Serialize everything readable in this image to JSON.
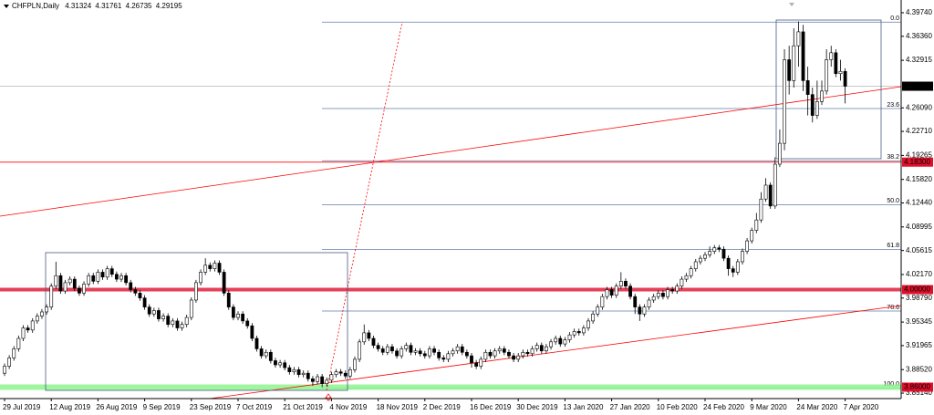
{
  "chart_data": {
    "type": "candlestick",
    "title": "CHFPLN,Daily",
    "ylim": [
      3.8436,
      4.4157
    ],
    "yticks": [
      {
        "value": 4.3974,
        "label": "4.39740"
      },
      {
        "value": 4.3636,
        "label": "4.36360"
      },
      4.32915,
      {
        "value": 4.2609,
        "label": "4.26090"
      },
      {
        "value": 4.2271,
        "label": "4.22710"
      },
      4.19265,
      {
        "value": 4.1582,
        "label": "4.15820"
      },
      {
        "value": 4.1244,
        "label": "4.12440"
      },
      4.08995,
      4.05615,
      {
        "value": 4.0217,
        "label": "4.02170"
      },
      {
        "value": 3.9879,
        "label": "3.98790"
      },
      3.95345,
      3.91965,
      {
        "value": 3.8852,
        "label": "3.88520"
      },
      {
        "value": 3.8514,
        "label": "3.85140"
      }
    ],
    "up_color": "#ffffff",
    "down_color": "#000000",
    "line_color": "#000000",
    "categories": [
      "29 Jul 2019",
      null,
      null,
      null,
      null,
      null,
      null,
      null,
      null,
      null,
      "12 Aug 2019",
      null,
      null,
      null,
      null,
      null,
      null,
      null,
      null,
      null,
      "26 Aug 2019",
      null,
      null,
      null,
      null,
      null,
      null,
      null,
      null,
      null,
      "9 Sep 2019",
      null,
      null,
      null,
      null,
      null,
      null,
      null,
      null,
      null,
      "23 Sep 2019",
      null,
      null,
      null,
      null,
      null,
      null,
      null,
      null,
      null,
      "7 Oct 2019",
      null,
      null,
      null,
      null,
      null,
      null,
      null,
      null,
      null,
      "21 Oct 2019",
      null,
      null,
      null,
      null,
      null,
      null,
      null,
      null,
      null,
      "4 Nov 2019",
      null,
      null,
      null,
      null,
      null,
      null,
      null,
      null,
      null,
      "18 Nov 2019",
      null,
      null,
      null,
      null,
      null,
      null,
      null,
      null,
      null,
      "2 Dec 2019",
      null,
      null,
      null,
      null,
      null,
      null,
      null,
      null,
      null,
      "16 Dec 2019",
      null,
      null,
      null,
      null,
      null,
      null,
      null,
      null,
      null,
      "30 Dec 2019",
      null,
      null,
      null,
      null,
      null,
      null,
      null,
      null,
      null,
      "13 Jan 2020",
      null,
      null,
      null,
      null,
      null,
      null,
      null,
      null,
      null,
      "27 Jan 2020",
      null,
      null,
      null,
      null,
      null,
      null,
      null,
      null,
      null,
      "10 Feb 2020",
      null,
      null,
      null,
      null,
      null,
      null,
      null,
      null,
      null,
      "24 Feb 2020",
      null,
      null,
      null,
      null,
      null,
      null,
      null,
      null,
      null,
      "9 Mar 2020",
      null,
      null,
      null,
      null,
      null,
      null,
      null,
      null,
      null,
      "24 Mar 2020",
      null,
      null,
      null,
      null,
      null,
      null,
      null,
      null,
      null,
      "7 Apr 2020"
    ],
    "open": [
      3.88,
      3.89,
      3.902,
      3.915,
      3.93,
      3.945,
      3.942,
      3.955,
      3.962,
      3.968,
      3.975,
      4.005,
      4.02,
      3.998,
      4.01,
      4.015,
      4.002,
      3.995,
      4.008,
      4.02,
      4.012,
      4.025,
      4.018,
      4.03,
      4.022,
      4.015,
      4.02,
      4.01,
      4.0,
      3.995,
      3.988,
      3.975,
      3.965,
      3.97,
      3.958,
      3.962,
      3.95,
      3.955,
      3.945,
      3.95,
      3.96,
      3.985,
      4.01,
      4.025,
      4.035,
      4.03,
      4.038,
      4.025,
      3.995,
      3.975,
      3.96,
      3.965,
      3.955,
      3.948,
      3.93,
      3.915,
      3.905,
      3.91,
      3.898,
      3.892,
      3.895,
      3.888,
      3.882,
      3.885,
      3.878,
      3.88,
      3.872,
      3.868,
      3.875,
      3.865,
      3.87,
      3.878,
      3.882,
      3.88,
      3.876,
      3.885,
      3.9,
      3.925,
      3.938,
      3.93,
      3.92,
      3.915,
      3.91,
      3.918,
      3.912,
      3.905,
      3.915,
      3.92,
      3.91,
      3.912,
      3.908,
      3.905,
      3.915,
      3.91,
      3.902,
      3.9,
      3.908,
      3.912,
      3.918,
      3.91,
      3.905,
      3.895,
      3.89,
      3.9,
      3.91,
      3.905,
      3.912,
      3.915,
      3.91,
      3.905,
      3.9,
      3.905,
      3.91,
      3.908,
      3.915,
      3.92,
      3.912,
      3.918,
      3.925,
      3.93,
      3.922,
      3.928,
      3.935,
      3.94,
      3.938,
      3.945,
      3.955,
      3.965,
      3.975,
      3.99,
      4.0,
      3.992,
      4.005,
      4.012,
      4.005,
      3.99,
      3.975,
      3.965,
      3.975,
      3.985,
      3.99,
      3.995,
      3.99,
      4.0,
      3.998,
      4.005,
      4.015,
      4.02,
      4.03,
      4.04,
      4.045,
      4.05,
      4.055,
      4.06,
      4.058,
      4.045,
      4.03,
      4.025,
      4.04,
      4.055,
      4.07,
      4.085,
      4.1,
      4.13,
      4.15,
      4.12,
      4.18,
      4.21,
      4.33,
      4.3,
      4.35,
      4.37,
      4.3,
      4.28,
      4.25,
      4.27,
      4.285,
      4.33,
      4.34,
      4.31,
      4.31324
    ],
    "high": [
      3.894,
      3.906,
      3.919,
      3.934,
      3.949,
      3.949,
      3.959,
      3.966,
      3.972,
      3.979,
      4.009,
      4.04,
      4.024,
      4.014,
      4.019,
      4.019,
      4.006,
      4.012,
      4.024,
      4.024,
      4.029,
      4.029,
      4.034,
      4.034,
      4.026,
      4.024,
      4.024,
      4.014,
      4.004,
      3.999,
      3.992,
      3.979,
      3.974,
      3.974,
      3.966,
      3.966,
      3.959,
      3.959,
      3.954,
      3.964,
      3.989,
      4.014,
      4.029,
      4.045,
      4.039,
      4.042,
      4.042,
      4.029,
      3.999,
      3.979,
      3.969,
      3.969,
      3.959,
      3.952,
      3.934,
      3.919,
      3.914,
      3.914,
      3.902,
      3.899,
      3.899,
      3.892,
      3.889,
      3.889,
      3.884,
      3.884,
      3.876,
      3.879,
      3.879,
      3.874,
      3.882,
      3.886,
      3.886,
      3.884,
      3.889,
      3.904,
      3.929,
      3.95,
      3.942,
      3.934,
      3.924,
      3.919,
      3.922,
      3.922,
      3.916,
      3.919,
      3.924,
      3.924,
      3.916,
      3.916,
      3.912,
      3.919,
      3.919,
      3.914,
      3.906,
      3.912,
      3.916,
      3.922,
      3.922,
      3.914,
      3.909,
      3.899,
      3.904,
      3.914,
      3.914,
      3.916,
      3.919,
      3.919,
      3.914,
      3.909,
      3.909,
      3.914,
      3.914,
      3.919,
      3.924,
      3.924,
      3.922,
      3.929,
      3.934,
      3.934,
      3.932,
      3.939,
      3.944,
      3.944,
      3.949,
      3.959,
      3.969,
      3.979,
      3.994,
      4.004,
      4.004,
      4.009,
      4.025,
      4.016,
      4.009,
      3.994,
      3.979,
      3.979,
      3.989,
      3.994,
      3.999,
      3.999,
      4.004,
      4.004,
      4.009,
      4.019,
      4.024,
      4.034,
      4.044,
      4.049,
      4.054,
      4.062,
      4.064,
      4.064,
      4.062,
      4.049,
      4.034,
      4.044,
      4.059,
      4.074,
      4.089,
      4.11,
      4.14,
      4.16,
      4.154,
      4.19,
      4.23,
      4.345,
      4.35,
      4.375,
      4.385,
      4.38,
      4.32,
      4.29,
      4.3,
      4.3,
      4.345,
      4.35,
      4.345,
      4.33,
      4.31761
    ],
    "low": [
      3.876,
      3.886,
      3.898,
      3.911,
      3.926,
      3.938,
      3.938,
      3.951,
      3.958,
      3.964,
      3.971,
      4.001,
      3.994,
      3.994,
      4.006,
      3.998,
      3.991,
      3.991,
      4.004,
      4.008,
      4.008,
      4.014,
      4.014,
      4.018,
      4.011,
      4.011,
      4.006,
      3.996,
      3.991,
      3.984,
      3.971,
      3.961,
      3.961,
      3.954,
      3.954,
      3.946,
      3.946,
      3.941,
      3.941,
      3.946,
      3.956,
      3.981,
      4.006,
      4.021,
      4.026,
      4.026,
      4.021,
      3.991,
      3.971,
      3.956,
      3.956,
      3.951,
      3.944,
      3.926,
      3.911,
      3.901,
      3.901,
      3.894,
      3.888,
      3.888,
      3.884,
      3.878,
      3.878,
      3.874,
      3.874,
      3.868,
      3.862,
      3.864,
      3.86,
      3.861,
      3.866,
      3.874,
      3.876,
      3.872,
      3.872,
      3.881,
      3.896,
      3.921,
      3.926,
      3.916,
      3.911,
      3.906,
      3.906,
      3.908,
      3.901,
      3.901,
      3.911,
      3.906,
      3.906,
      3.904,
      3.901,
      3.901,
      3.906,
      3.898,
      3.896,
      3.896,
      3.904,
      3.908,
      3.906,
      3.901,
      3.888,
      3.886,
      3.886,
      3.896,
      3.901,
      3.901,
      3.908,
      3.906,
      3.901,
      3.896,
      3.896,
      3.901,
      3.904,
      3.904,
      3.911,
      3.908,
      3.908,
      3.914,
      3.921,
      3.918,
      3.918,
      3.924,
      3.931,
      3.934,
      3.934,
      3.941,
      3.951,
      3.961,
      3.971,
      3.986,
      3.988,
      3.988,
      4.001,
      4.001,
      3.986,
      3.965,
      3.955,
      3.961,
      3.971,
      3.981,
      3.986,
      3.986,
      3.986,
      3.994,
      3.994,
      4.001,
      4.011,
      4.016,
      4.026,
      4.036,
      4.041,
      4.046,
      4.051,
      4.054,
      4.041,
      4.02,
      4.018,
      4.021,
      4.036,
      4.051,
      4.066,
      4.081,
      4.096,
      4.126,
      4.116,
      4.116,
      4.176,
      4.2,
      4.28,
      4.29,
      4.32,
      4.285,
      4.25,
      4.24,
      4.245,
      4.265,
      4.28,
      4.32,
      4.305,
      4.3,
      4.26735
    ],
    "close": [
      3.89,
      3.902,
      3.915,
      3.93,
      3.945,
      3.942,
      3.955,
      3.962,
      3.968,
      3.975,
      4.005,
      4.02,
      3.998,
      4.01,
      4.015,
      4.002,
      3.995,
      4.008,
      4.02,
      4.012,
      4.025,
      4.018,
      4.03,
      4.022,
      4.015,
      4.02,
      4.01,
      4.0,
      3.995,
      3.988,
      3.975,
      3.965,
      3.97,
      3.958,
      3.962,
      3.95,
      3.955,
      3.945,
      3.95,
      3.96,
      3.985,
      4.01,
      4.025,
      4.035,
      4.03,
      4.038,
      4.025,
      3.995,
      3.975,
      3.96,
      3.965,
      3.955,
      3.948,
      3.93,
      3.915,
      3.905,
      3.91,
      3.898,
      3.892,
      3.895,
      3.888,
      3.882,
      3.885,
      3.878,
      3.88,
      3.872,
      3.868,
      3.875,
      3.865,
      3.87,
      3.878,
      3.882,
      3.88,
      3.876,
      3.885,
      3.9,
      3.925,
      3.938,
      3.93,
      3.92,
      3.915,
      3.91,
      3.918,
      3.912,
      3.905,
      3.915,
      3.92,
      3.91,
      3.912,
      3.908,
      3.905,
      3.915,
      3.91,
      3.902,
      3.9,
      3.908,
      3.912,
      3.918,
      3.91,
      3.905,
      3.895,
      3.89,
      3.9,
      3.91,
      3.905,
      3.912,
      3.915,
      3.91,
      3.905,
      3.9,
      3.905,
      3.91,
      3.908,
      3.915,
      3.92,
      3.912,
      3.918,
      3.925,
      3.93,
      3.922,
      3.928,
      3.935,
      3.94,
      3.938,
      3.945,
      3.955,
      3.965,
      3.975,
      3.99,
      4.0,
      3.992,
      4.005,
      4.012,
      4.005,
      3.99,
      3.975,
      3.965,
      3.975,
      3.985,
      3.99,
      3.995,
      3.99,
      4.0,
      3.998,
      4.005,
      4.015,
      4.02,
      4.03,
      4.04,
      4.045,
      4.05,
      4.055,
      4.06,
      4.058,
      4.045,
      4.03,
      4.025,
      4.04,
      4.055,
      4.07,
      4.085,
      4.1,
      4.13,
      4.15,
      4.12,
      4.18,
      4.21,
      4.33,
      4.3,
      4.35,
      4.37,
      4.3,
      4.28,
      4.25,
      4.27,
      4.285,
      4.33,
      4.34,
      4.31,
      4.31324,
      4.29195
    ],
    "fib_color": "#5f7fae",
    "fib_levels": [
      {
        "value": 4.384,
        "label": "0.0"
      },
      {
        "value": 4.2599,
        "label": "23.6"
      },
      {
        "value": 4.185,
        "label": "38.2"
      },
      {
        "value": 4.122,
        "label": "50.0"
      },
      {
        "value": 4.0578,
        "label": "61.8"
      },
      {
        "value": 3.9693,
        "label": "78.6"
      },
      {
        "value": 3.859,
        "label": "100.0"
      }
    ],
    "price_levels": [
      {
        "value": 4.29195,
        "color": "#000000",
        "line_color": "#c0c0c0",
        "line_width": 1
      },
      {
        "value": 4.183,
        "label": "4.18300",
        "color": "#e0102a",
        "line_color": "#ff0000",
        "line_width": 1
      },
      {
        "value": 4.0,
        "label": "4.00000",
        "color": "#e0102a",
        "line_color": "#e0203c",
        "line_width": 4
      },
      {
        "value": 3.86,
        "label": "3.86000",
        "color": "#e0102a",
        "line_color": "#8ef58e",
        "line_width": 6
      }
    ]
  }
}
